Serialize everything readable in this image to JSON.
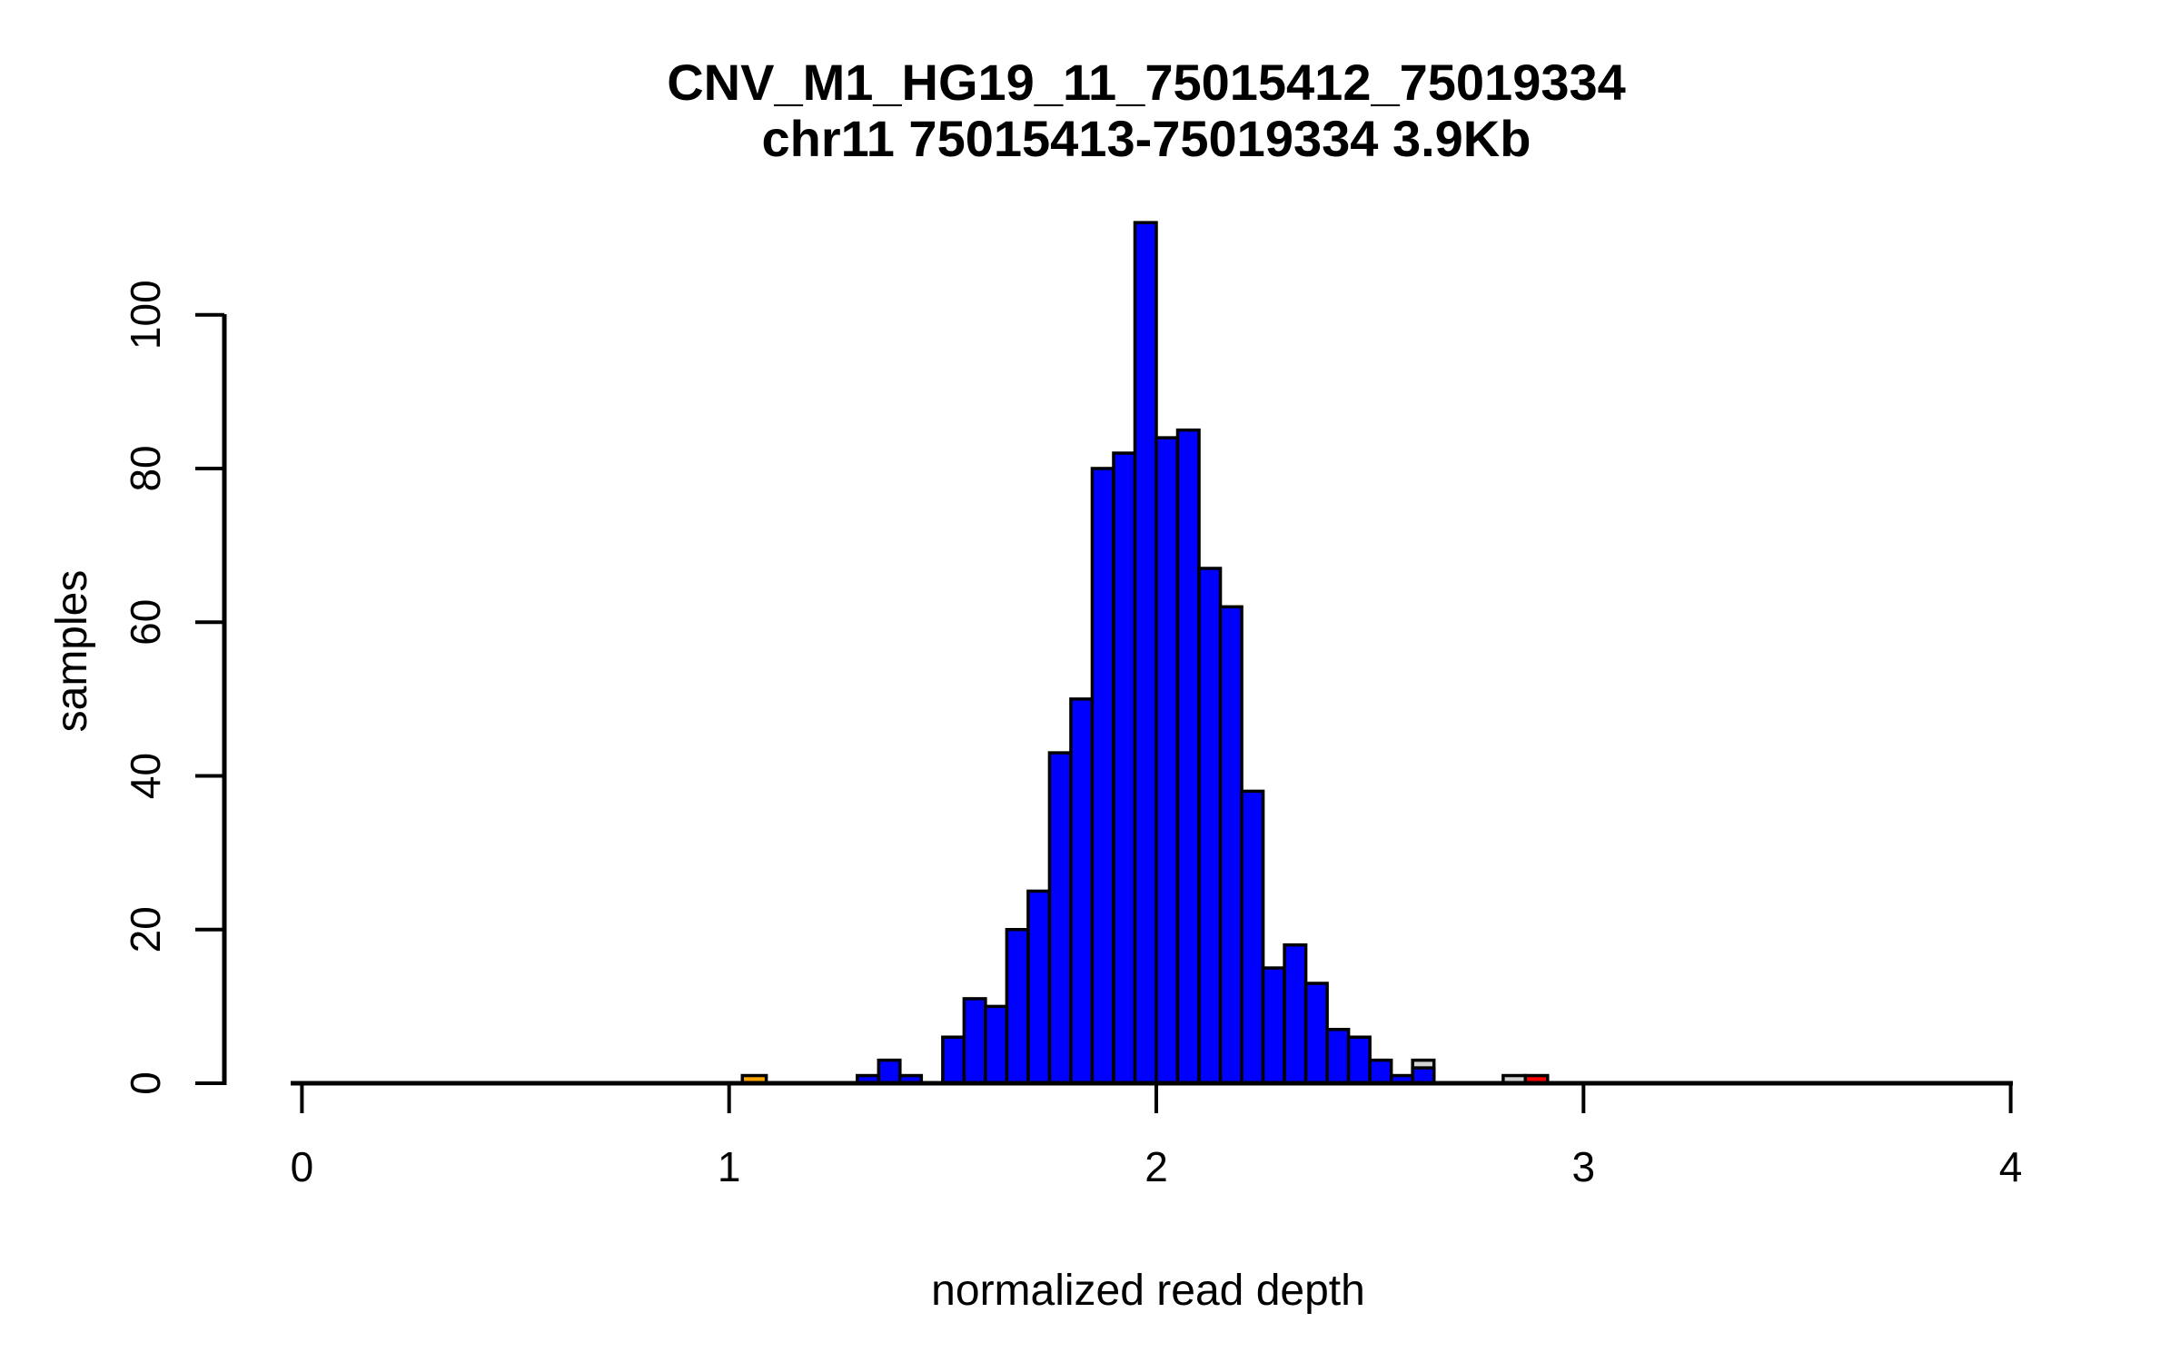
{
  "chart_data": {
    "type": "bar",
    "subtype": "histogram",
    "title": "CNV_M1_HG19_11_75015412_75019334",
    "subtitle": "chr11 75015413-75019334 3.9Kb",
    "xlabel": "normalized read depth",
    "ylabel": "samples",
    "xlim": [
      0,
      4
    ],
    "ylim": [
      0,
      112
    ],
    "x_ticks": [
      0,
      1,
      2,
      3,
      4
    ],
    "y_ticks": [
      0,
      20,
      40,
      60,
      80,
      100
    ],
    "grid": "off",
    "legend": "none",
    "bin_width": 0.05,
    "colors": {
      "cohort_blue": "#0000FF",
      "background_lightgray": "#D3D3D3",
      "highlight_orange": "#FFA500",
      "highlight_red": "#FF0000",
      "bar_border": "#000000",
      "axis": "#000000"
    },
    "series": [
      {
        "name": "background-samples-lightgray",
        "color": "#D3D3D3",
        "bars": [
          {
            "x": 2.6,
            "count": 3
          },
          {
            "x": 2.812,
            "count": 1,
            "width": 0.052
          }
        ]
      },
      {
        "name": "cohort-samples-blue",
        "color": "#0000FF",
        "bars": [
          {
            "x": 1.3,
            "count": 1
          },
          {
            "x": 1.35,
            "count": 3
          },
          {
            "x": 1.4,
            "count": 1
          },
          {
            "x": 1.5,
            "count": 6
          },
          {
            "x": 1.55,
            "count": 11
          },
          {
            "x": 1.6,
            "count": 10
          },
          {
            "x": 1.65,
            "count": 20
          },
          {
            "x": 1.7,
            "count": 25
          },
          {
            "x": 1.75,
            "count": 43
          },
          {
            "x": 1.8,
            "count": 50
          },
          {
            "x": 1.85,
            "count": 80
          },
          {
            "x": 1.9,
            "count": 82
          },
          {
            "x": 1.95,
            "count": 112
          },
          {
            "x": 2.0,
            "count": 84
          },
          {
            "x": 2.05,
            "count": 85
          },
          {
            "x": 2.1,
            "count": 67
          },
          {
            "x": 2.15,
            "count": 62
          },
          {
            "x": 2.2,
            "count": 38
          },
          {
            "x": 2.25,
            "count": 15
          },
          {
            "x": 2.3,
            "count": 18
          },
          {
            "x": 2.35,
            "count": 13
          },
          {
            "x": 2.4,
            "count": 7
          },
          {
            "x": 2.45,
            "count": 6
          },
          {
            "x": 2.5,
            "count": 3
          },
          {
            "x": 2.55,
            "count": 1
          },
          {
            "x": 2.6,
            "count": 2
          }
        ]
      },
      {
        "name": "highlight-sample-orange",
        "color": "#FFA500",
        "bars": [
          {
            "x": 1.031,
            "count": 1,
            "width": 0.056
          }
        ]
      },
      {
        "name": "highlight-sample-red",
        "color": "#FF0000",
        "bars": [
          {
            "x": 2.864,
            "count": 1,
            "width": 0.052
          }
        ]
      }
    ]
  }
}
